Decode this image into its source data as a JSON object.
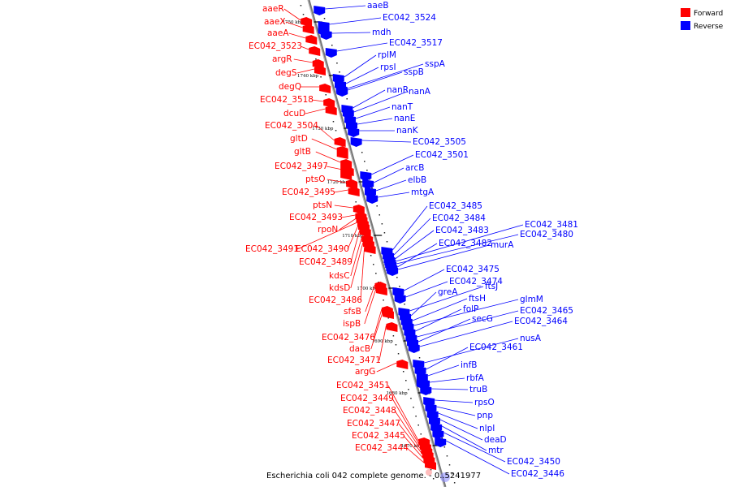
{
  "caption": "Escherichia coli 042 complete genome. - 0..5241977",
  "legend": [
    {
      "label": "Forward",
      "color": "#ff0000"
    },
    {
      "label": "Reverse",
      "color": "#0000ff"
    }
  ],
  "colors": {
    "forward": "#ff0000",
    "reverse": "#0000ff",
    "backbone": "#888888",
    "tick": "#000000"
  },
  "ticks": [
    "1750 kbp",
    "1740 kbp",
    "1730 kbp",
    "1720 kbp",
    "1710 kbp",
    "1700 kbp",
    "1690 kbp",
    "1680 kbp",
    "1670 kbp"
  ],
  "forward_genes": [
    "aaeR",
    "aaeX",
    "aaeA",
    "EC042_3523",
    "argR",
    "degS",
    "degQ",
    "EC042_3518",
    "dcuD",
    "EC042_3504",
    "gltD",
    "gltB",
    "EC042_3497",
    "ptsO",
    "EC042_3495",
    "ptsN",
    "EC042_3493",
    "rpoN",
    "EC042_3491",
    "EC042_3490",
    "EC042_3489",
    "kdsC",
    "kdsD",
    "EC042_3486",
    "sfsB",
    "ispB",
    "EC042_3476",
    "dacB",
    "EC042_3471",
    "argG",
    "EC042_3451",
    "EC042_3449",
    "EC042_3448",
    "EC042_3447",
    "EC042_3445",
    "EC042_3444"
  ],
  "reverse_genes": [
    "aaeB",
    "EC042_3524",
    "mdh",
    "EC042_3517",
    "rplM",
    "rpsI",
    "sspA",
    "sspB",
    "nanR",
    "nanA",
    "nanT",
    "nanE",
    "nanK",
    "EC042_3505",
    "EC042_3501",
    "arcB",
    "elbB",
    "mtgA",
    "EC042_3485",
    "EC042_3484",
    "EC042_3483",
    "EC042_3481",
    "EC042_3480",
    "EC042_3482",
    "murA",
    "EC042_3475",
    "EC042_3474",
    "ftsJ",
    "greA",
    "ftsH",
    "glmM",
    "folP",
    "EC042_3465",
    "secG",
    "EC042_3464",
    "nusA",
    "EC042_3461",
    "infB",
    "rbfA",
    "truB",
    "rpsO",
    "pnp",
    "nlpI",
    "deaD",
    "mtr",
    "EC042_3450",
    "EC042_3446"
  ]
}
